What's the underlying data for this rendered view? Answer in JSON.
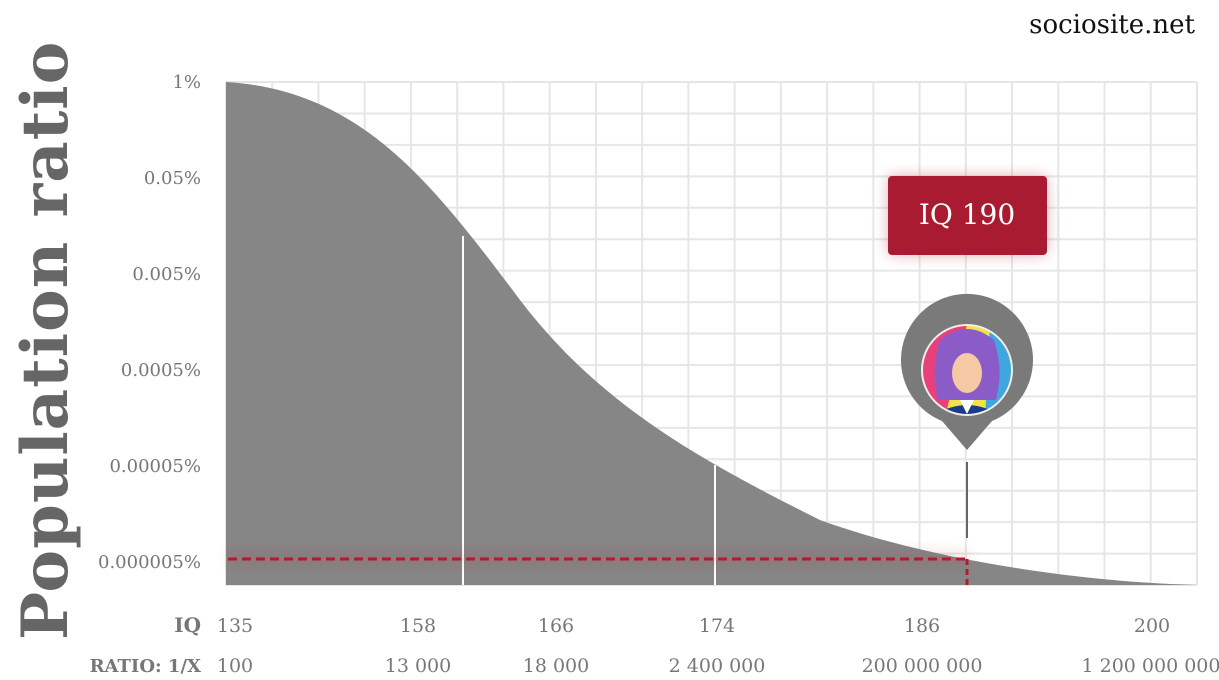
{
  "site": "sociosite.net",
  "ylabel": "Population ratio",
  "callout": "IQ 190",
  "row_labels": {
    "iq": "IQ",
    "ratio": "RATIO: 1/X"
  },
  "colors": {
    "fill": "#868686",
    "grid": "#e6e6e6",
    "marker": "#b01c2e",
    "pin": "#7a7a7a"
  },
  "icon": "isaac-newton-portrait-icon",
  "chart_data": {
    "type": "area",
    "title": "",
    "xlabel": "",
    "ylabel": "Population ratio",
    "y_scale": "log",
    "y_ticks": [
      "1%",
      "0.05%",
      "0.005%",
      "0.0005%",
      "0.00005%",
      "0.000005%"
    ],
    "iq_ticks": [
      "135",
      "158",
      "166",
      "174",
      "186",
      "200"
    ],
    "ratio_ticks": [
      "100",
      "13 000",
      "18 000",
      "2 400 000",
      "200 000 000",
      "1 200 000 000"
    ],
    "highlight_iq": 190,
    "grid": true,
    "legend": "none"
  }
}
